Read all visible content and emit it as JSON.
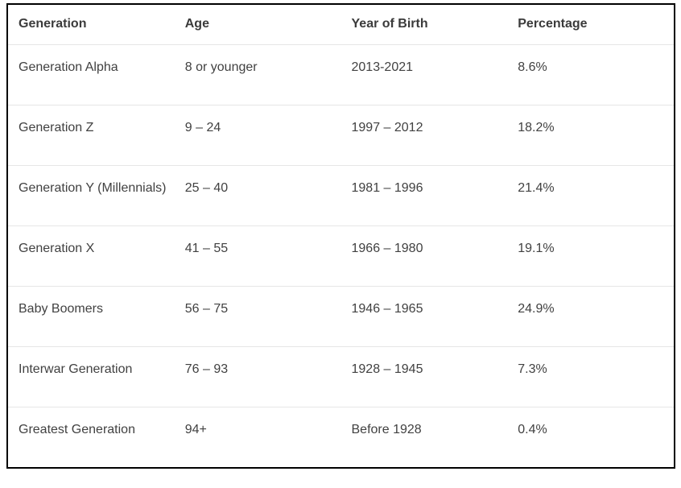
{
  "chart_data": {
    "type": "table",
    "columns": [
      "Generation",
      "Age",
      "Year of Birth",
      "Percentage"
    ],
    "rows": [
      [
        "Generation Alpha",
        "8 or younger",
        "2013-2021",
        "8.6%"
      ],
      [
        "Generation Z",
        "9 – 24",
        "1997 – 2012",
        "18.2%"
      ],
      [
        "Generation Y (Millennials)",
        "25 – 40",
        "1981 – 1996",
        "21.4%"
      ],
      [
        "Generation X",
        "41 – 55",
        "1966 – 1980",
        "19.1%"
      ],
      [
        "Baby Boomers",
        "56 – 75",
        "1946 – 1965",
        "24.9%"
      ],
      [
        "Interwar Generation",
        "76 – 93",
        "1928 – 1945",
        "7.3%"
      ],
      [
        "Greatest Generation",
        "94+",
        "Before 1928",
        "0.4%"
      ]
    ]
  },
  "colors": {
    "frame-border": "#000000",
    "row-divider": "#e6e6e6",
    "header-text": "#3b3b3b",
    "body-text": "#414141",
    "background": "#ffffff"
  }
}
